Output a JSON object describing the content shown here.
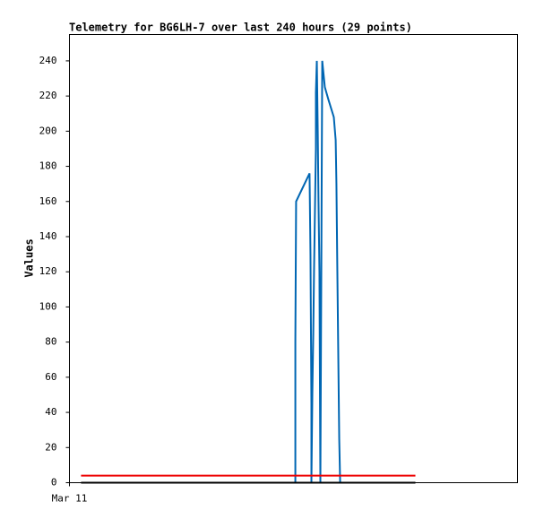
{
  "chart_data": {
    "type": "line",
    "title": "Telemetry for BG6LH-7 over last 240 hours (29 points)",
    "y_label": "Values",
    "xlim": [
      0,
      240
    ],
    "xticks": [
      {
        "value": 0,
        "label": "Mar 11"
      }
    ],
    "ylim": [
      0,
      255
    ],
    "yticks": [
      0,
      20,
      40,
      60,
      80,
      100,
      120,
      140,
      160,
      180,
      200,
      220,
      240
    ],
    "grid": false,
    "series": [
      {
        "color": "#0066b3",
        "x": [
          121.0,
          121.0,
          121.4,
          128.6,
          129.1,
          129.6,
          129.6,
          130.1,
          130.6,
          131.0,
          131.5,
          132.0,
          132.0,
          132.5,
          133.0,
          133.4,
          133.9,
          134.4,
          134.9,
          135.4,
          136.8,
          138.7,
          141.6,
          142.6,
          143.0,
          143.5,
          144.0,
          144.5,
          145.0
        ],
        "values": [
          0,
          80,
          160,
          176,
          130,
          45,
          0,
          50,
          85,
          120,
          155,
          190,
          222,
          240,
          200,
          160,
          120,
          0,
          120,
          240,
          225,
          218,
          208,
          195,
          170,
          120,
          72,
          25,
          0
        ]
      },
      {
        "color": "#ee0000",
        "x": [
          6.2,
          185.3
        ],
        "values": [
          4,
          4
        ]
      },
      {
        "color": "#000000",
        "x": [
          6.2,
          185.3
        ],
        "values": [
          0,
          0
        ]
      }
    ]
  }
}
